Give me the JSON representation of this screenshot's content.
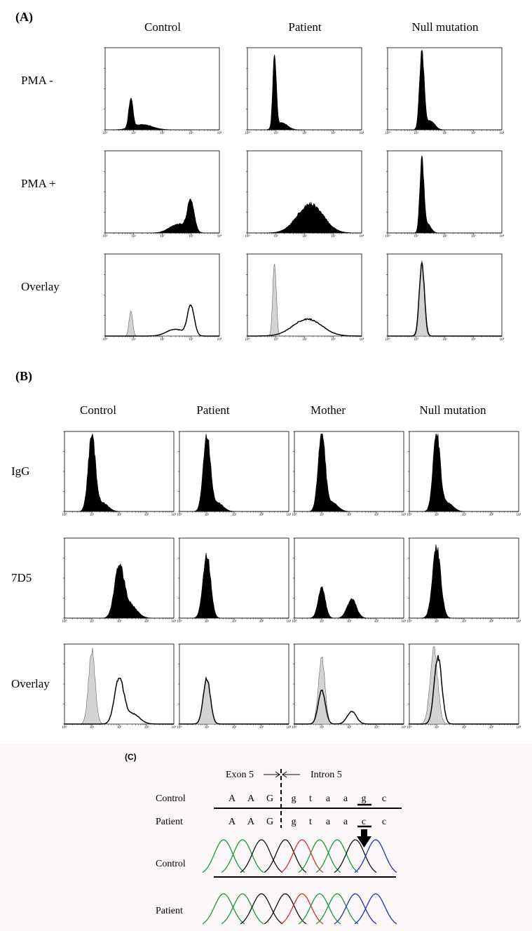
{
  "panel_a": {
    "label": "(A)",
    "columns": [
      "Control",
      "Patient",
      "Null mutation"
    ],
    "rows": [
      "PMA -",
      "PMA +",
      "Overlay"
    ],
    "x_tick_labels": [
      "10⁰",
      "10¹",
      "10²",
      "10³",
      "10⁴"
    ]
  },
  "panel_b": {
    "label": "(B)",
    "columns": [
      "Control",
      "Patient",
      "Mother",
      "Null mutation"
    ],
    "rows": [
      "IgG",
      "7D5",
      "Overlay"
    ],
    "x_tick_labels": [
      "10⁰",
      "10¹",
      "10²",
      "10³",
      "10⁴"
    ]
  },
  "panel_c": {
    "label": "(C)",
    "exon": "Exon 5",
    "intron": "Intron 5",
    "sequence_rows": [
      {
        "label": "Control",
        "bases": [
          "A",
          "A",
          "G",
          "g",
          "t",
          "a",
          "a",
          "g",
          "c"
        ]
      },
      {
        "label": "Patient",
        "bases": [
          "A",
          "A",
          "G",
          "g",
          "t",
          "a",
          "a",
          "c",
          "c"
        ]
      }
    ],
    "trace_labels": [
      "Control",
      "Patient"
    ]
  }
}
